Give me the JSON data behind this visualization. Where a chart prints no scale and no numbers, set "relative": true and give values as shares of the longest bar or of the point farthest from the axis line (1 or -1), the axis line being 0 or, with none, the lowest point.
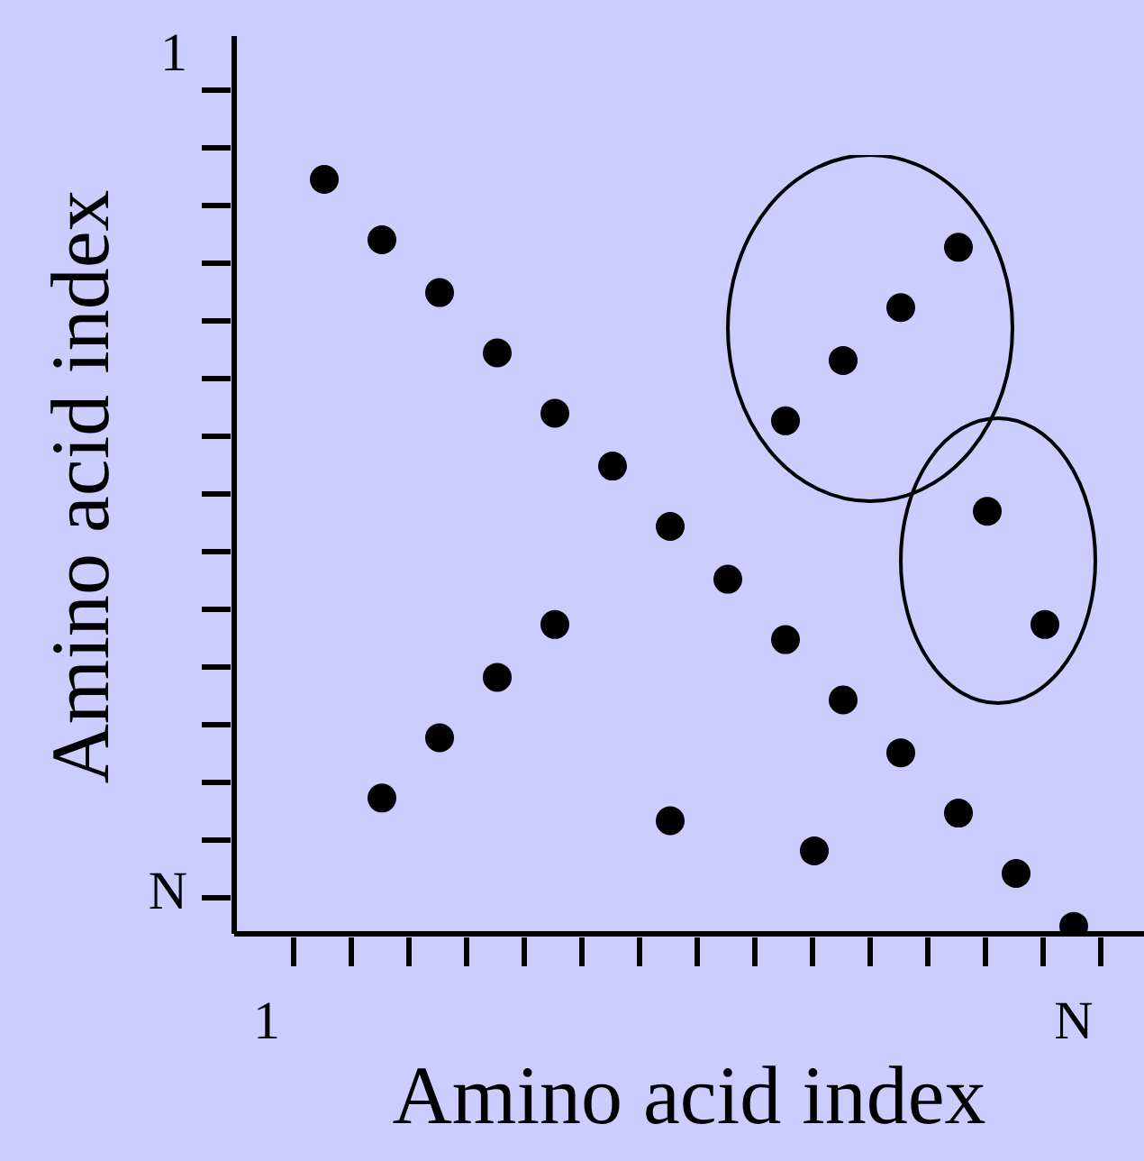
{
  "chart_data": {
    "type": "scatter",
    "xlabel": "Amino acid index",
    "ylabel": "Amino acid index",
    "marker": "circle",
    "relative": true,
    "categories": [
      "1",
      null,
      null,
      null,
      null,
      null,
      null,
      null,
      null,
      null,
      null,
      null,
      null,
      null,
      null,
      null,
      null,
      null,
      null,
      null,
      null,
      null,
      null,
      null,
      null,
      null,
      null,
      null,
      "N"
    ],
    "annotations": [
      "1",
      "N"
    ],
    "series": [
      {
        "color": "#000000",
        "values": [
          null,
          null,
          1.0,
          null,
          0.92,
          null,
          0.85,
          null,
          0.77,
          null,
          0.69,
          null,
          0.62,
          null,
          0.54,
          null,
          0.47,
          null,
          0.39,
          null,
          0.31,
          null,
          0.24,
          null,
          0.16,
          null,
          0.08,
          null,
          0.01
        ]
      },
      {
        "color": "#000000",
        "values": [
          null,
          null,
          null,
          null,
          0.18,
          null,
          0.26,
          null,
          0.34,
          null,
          0.41,
          null,
          null,
          null,
          0.15,
          null,
          null,
          null,
          0.68,
          0.11,
          0.76,
          null,
          0.83,
          null,
          0.91,
          0.56,
          null,
          0.41,
          null
        ]
      }
    ]
  }
}
